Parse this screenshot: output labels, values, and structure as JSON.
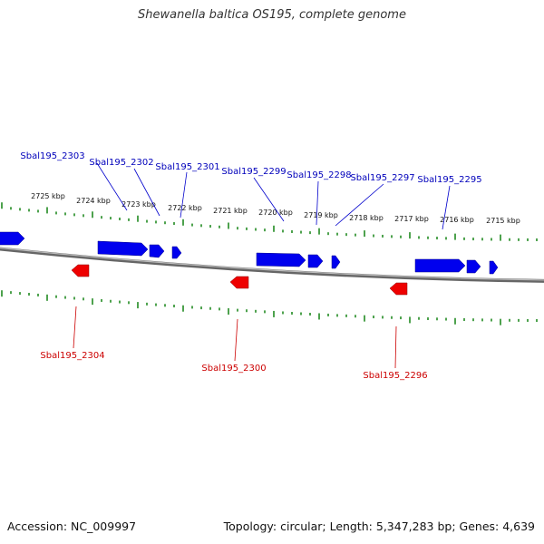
{
  "title": "Shewanella baltica OS195, complete genome",
  "footer": {
    "accession": "Accession: NC_009997",
    "summary": "Topology: circular; Length: 5,347,283 bp; Genes: 4,639"
  },
  "colors": {
    "forward_gene": "#0000ee",
    "reverse_gene": "#ee0000",
    "forward_label": "#0000bb",
    "reverse_label": "#cc0000",
    "tick": "#228b22",
    "backbone": "#777777"
  },
  "scale_labels": [
    "2725 kbp",
    "2724 kbp",
    "2723 kbp",
    "2722 kbp",
    "2721 kbp",
    "2720 kbp",
    "2719 kbp",
    "2718 kbp",
    "2717 kbp",
    "2716 kbp",
    "2715 kbp"
  ],
  "forward_labels": [
    "Sbal195_2303",
    "Sbal195_2302",
    "Sbal195_2301",
    "Sbal195_2299",
    "Sbal195_2298",
    "Sbal195_2297",
    "Sbal195_2295"
  ],
  "reverse_labels": [
    "Sbal195_2304",
    "Sbal195_2300",
    "Sbal195_2296"
  ]
}
